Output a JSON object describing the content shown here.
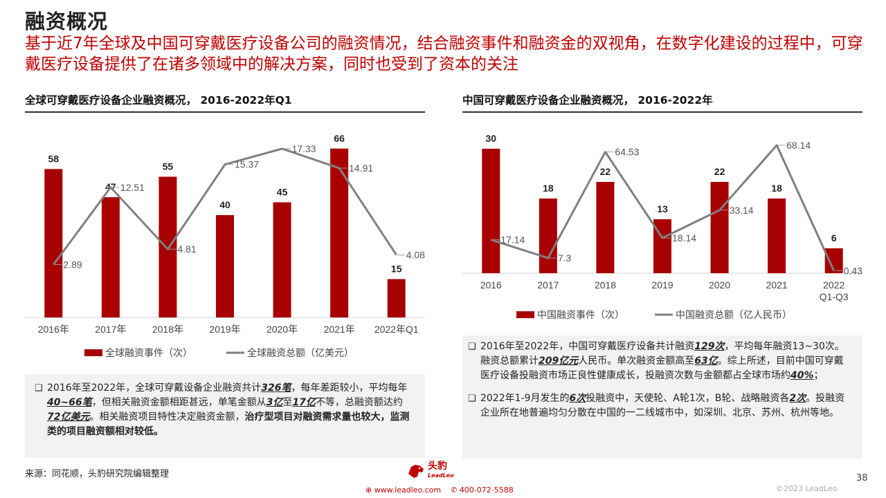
{
  "header": {
    "title": "融资概况",
    "subtitle": "基于近7年全球及中国可穿戴医疗设备公司的融资情况，结合融资事件和融资金的双视角，在数字化建设的过程中，可穿戴医疗设备提供了在诸多领域中的解决方案，同时也受到了资本的关注"
  },
  "colors": {
    "bar": "#a80000",
    "line": "#7f7f7f",
    "accent": "#c00000"
  },
  "chart_data": [
    {
      "type": "bar+line",
      "title": "全球可穿戴医疗设备企业融资概况， 2016-2022年Q1",
      "categories": [
        "2016年",
        "2017年",
        "2018年",
        "2019年",
        "2020年",
        "2021年",
        "2022年Q1"
      ],
      "series": [
        {
          "name": "全球融资事件（次）",
          "type": "bar",
          "values": [
            58,
            47,
            55,
            40,
            45,
            66,
            15
          ]
        },
        {
          "name": "全球融资总额（亿美元）",
          "type": "line",
          "values": [
            2.89,
            12.51,
            4.81,
            15.37,
            17.33,
            14.91,
            4.08
          ]
        }
      ],
      "legend": "bottom"
    },
    {
      "type": "bar+line",
      "title": "中国可穿戴医疗设备企业融资概况， 2016-2022年",
      "categories": [
        "2016",
        "2017",
        "2018",
        "2019",
        "2020",
        "2021",
        "2022\nQ1-Q3"
      ],
      "series": [
        {
          "name": "中国融资事件（次）",
          "type": "bar",
          "values": [
            30,
            18,
            22,
            13,
            22,
            18,
            6
          ]
        },
        {
          "name": "中国融资总额（亿人民币）",
          "type": "line",
          "values": [
            17.14,
            7.3,
            64.53,
            18.14,
            33.14,
            68.14,
            0.43
          ]
        }
      ],
      "legend": "bottom"
    }
  ],
  "notes": {
    "left": {
      "bullet": "❑",
      "p1": "2016年至2022年，全球可穿戴设备企业融资共计",
      "b1": "326笔",
      "p2": "，每年差距较小，平均每年",
      "b2": "40~66笔",
      "p3": "，但相关融资金额相距甚远，单笔金额从",
      "b3": "3亿",
      "p4": "至",
      "b4": "17亿",
      "p5": "不等，总融资额达约",
      "b5": "72亿美元",
      "p6": "。相关融资项目特性决定融资金额，",
      "s1": "治疗型项目对融资需求量也较大，监测类的项目融资额相对较低。"
    },
    "right1": {
      "bullet": "❑",
      "p1": "2016年至2022年，中国可穿戴医疗设备共计融资",
      "b1": "129次",
      "p2": "，平均每年融资13~30次。融资总额累计",
      "b2": "209亿元",
      "p3": "人民币。单次融资金额高至",
      "b3": "63亿",
      "p4": "。综上所述，目前中国可穿戴医疗设备投融资市场正良性健康成长，投融资次数与金额都占全球市场约",
      "b4": "40%",
      "p5": "；"
    },
    "right2": {
      "bullet": "❑",
      "p1": "2022年1-9月发生的",
      "b1": "6次",
      "p2": "投融资中，天使轮、A轮1次，B轮、战略融资各",
      "b2": "2次",
      "p3": "。投融资企业所在地普遍均匀分散在中国的一二线城市中，如深圳、北京、苏州、杭州等地。"
    }
  },
  "footer": {
    "source": "来源：同花顺，头豹研究院编辑整理",
    "page_number": "38",
    "copyright": "©2023 LeadLeo",
    "logo_text": "头豹",
    "logo_sub": "LeadLeo",
    "website": "www.leadleo.com",
    "phone": "400-072-5588"
  }
}
